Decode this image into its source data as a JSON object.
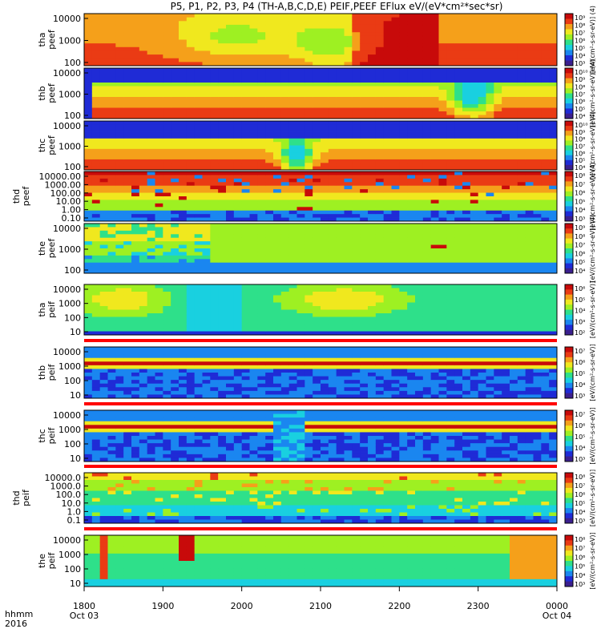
{
  "chart_data": {
    "type": "heatmap",
    "title": "P5, P1, P2, P3, P4 (TH-A,B,C,D,E) PEIF,PEEF EFlux eV/(eV*cm²*sec*sr)",
    "time_axis": {
      "row_label_1": "hhmm",
      "row_label_2": "2016",
      "ticks": [
        {
          "hhmm": "1800",
          "date": "Oct 03"
        },
        {
          "hhmm": "1900",
          "date": ""
        },
        {
          "hhmm": "2000",
          "date": ""
        },
        {
          "hhmm": "2100",
          "date": ""
        },
        {
          "hhmm": "2200",
          "date": ""
        },
        {
          "hhmm": "2300",
          "date": ""
        },
        {
          "hhmm": "0000",
          "date": "Oct 04"
        }
      ],
      "range_hours": [
        18.0,
        24.0
      ]
    },
    "colorbar_label_electron": "[eV/(cm²-s-sr-eV)] (4)",
    "colorbar_label_ion": "[eV/(cm²-s-sr-eV)]",
    "panels": [
      {
        "probe": "tha",
        "species": "peef",
        "yticks": [
          "10000",
          "1000",
          "100"
        ],
        "cb_ticks": [
          "10⁹",
          "10⁸",
          "10⁷",
          "10⁶",
          "10⁵",
          "10⁴",
          "10³"
        ],
        "scheme": "e_hot",
        "red_bar": false
      },
      {
        "probe": "thb",
        "species": "peef",
        "yticks": [
          "10000",
          "1000",
          "100"
        ],
        "cb_ticks": [
          "10¹⁰",
          "10⁹",
          "10⁸",
          "10⁷",
          "10⁶",
          "10⁵",
          "10⁴"
        ],
        "scheme": "e_cold_dip1",
        "red_bar": false
      },
      {
        "probe": "thc",
        "species": "peef",
        "yticks": [
          "10000",
          "1000",
          "100"
        ],
        "cb_ticks": [
          "10¹⁰",
          "10⁹",
          "10⁸",
          "10⁷",
          "10⁶",
          "10⁵",
          "10⁴"
        ],
        "scheme": "e_cold_dip2",
        "red_bar": false
      },
      {
        "probe": "thd",
        "species": "peef",
        "yticks": [
          "10000.00",
          "1000.00",
          "100.00",
          "10.00",
          "1.00",
          "0.10"
        ],
        "cb_ticks": [
          "10⁸",
          "10⁷",
          "10⁶",
          "10⁵",
          "10⁴",
          "10³"
        ],
        "scheme": "e_spiky",
        "red_bar": false
      },
      {
        "probe": "the",
        "species": "peef",
        "yticks": [
          "10000",
          "1000",
          "100"
        ],
        "cb_ticks": [
          "10⁹",
          "10⁸",
          "10⁷",
          "10⁶",
          "10⁵",
          "10⁴"
        ],
        "scheme": "e_mixed",
        "red_bar": false
      },
      {
        "probe": "tha",
        "species": "peif",
        "yticks": [
          "10000",
          "1000",
          "100",
          "10"
        ],
        "cb_ticks": [
          "10⁶",
          "10⁵",
          "10⁴",
          "10³",
          "10²"
        ],
        "scheme": "i_plain",
        "red_bar": false
      },
      {
        "probe": "thb",
        "species": "peif",
        "yticks": [
          "10000",
          "1000",
          "100",
          "10"
        ],
        "cb_ticks": [
          "10⁷",
          "10⁶",
          "10⁵",
          "10⁴",
          "10³"
        ],
        "scheme": "i_band1",
        "red_bar": true
      },
      {
        "probe": "thc",
        "species": "peif",
        "yticks": [
          "10000",
          "1000",
          "100",
          "10"
        ],
        "cb_ticks": [
          "10⁷",
          "10⁶",
          "10⁵",
          "10⁴",
          "10³"
        ],
        "scheme": "i_band2",
        "red_bar": true
      },
      {
        "probe": "thd",
        "species": "peif",
        "yticks": [
          "10000.0",
          "1000.0",
          "100.0",
          "10.0",
          "1.0",
          "0.1"
        ],
        "cb_ticks": [
          "10⁸",
          "10⁷",
          "10⁶",
          "10⁵",
          "10⁴",
          "10³"
        ],
        "scheme": "i_wide",
        "red_bar": true
      },
      {
        "probe": "the",
        "species": "peif",
        "yticks": [
          "10000",
          "1000",
          "100",
          "10"
        ],
        "cb_ticks": [
          "10⁸",
          "10⁷",
          "10⁶",
          "10⁵",
          "10⁴",
          "10³"
        ],
        "scheme": "i_last",
        "red_bar": true
      }
    ],
    "colormap": [
      "#3b1f8f",
      "#1f2bd6",
      "#1a86f0",
      "#19d0e0",
      "#2ee08a",
      "#9ef022",
      "#f0e81e",
      "#f5a01a",
      "#ea3b14",
      "#c80a0a"
    ]
  }
}
